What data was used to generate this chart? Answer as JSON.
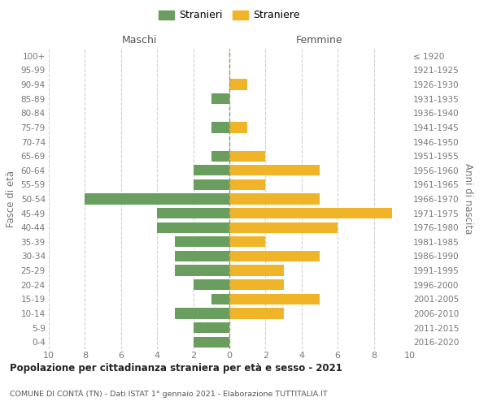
{
  "age_groups_bottom_to_top": [
    "0-4",
    "5-9",
    "10-14",
    "15-19",
    "20-24",
    "25-29",
    "30-34",
    "35-39",
    "40-44",
    "45-49",
    "50-54",
    "55-59",
    "60-64",
    "65-69",
    "70-74",
    "75-79",
    "80-84",
    "85-89",
    "90-94",
    "95-99",
    "100+"
  ],
  "birth_years_bottom_to_top": [
    "2016-2020",
    "2011-2015",
    "2006-2010",
    "2001-2005",
    "1996-2000",
    "1991-1995",
    "1986-1990",
    "1981-1985",
    "1976-1980",
    "1971-1975",
    "1966-1970",
    "1961-1965",
    "1956-1960",
    "1951-1955",
    "1946-1950",
    "1941-1945",
    "1936-1940",
    "1931-1935",
    "1926-1930",
    "1921-1925",
    "≤ 1920"
  ],
  "maschi_bottom_to_top": [
    2,
    2,
    3,
    1,
    2,
    3,
    3,
    3,
    4,
    4,
    8,
    2,
    2,
    1,
    0,
    1,
    0,
    1,
    0,
    0,
    0
  ],
  "femmine_bottom_to_top": [
    0,
    0,
    3,
    5,
    3,
    3,
    5,
    2,
    6,
    9,
    5,
    2,
    5,
    2,
    0,
    1,
    0,
    0,
    1,
    0,
    0
  ],
  "male_color": "#6a9e5e",
  "female_color": "#f0b429",
  "background_color": "#ffffff",
  "grid_color": "#d0d0d0",
  "title": "Popolazione per cittadinanza straniera per età e sesso - 2021",
  "subtitle": "COMUNE DI CONTÀ (TN) - Dati ISTAT 1° gennaio 2021 - Elaborazione TUTTITALIA.IT",
  "xlabel_left": "Maschi",
  "xlabel_right": "Femmine",
  "ylabel_left": "Fasce di età",
  "ylabel_right": "Anni di nascita",
  "legend_stranieri": "Stranieri",
  "legend_straniere": "Straniere",
  "xlim": 10
}
